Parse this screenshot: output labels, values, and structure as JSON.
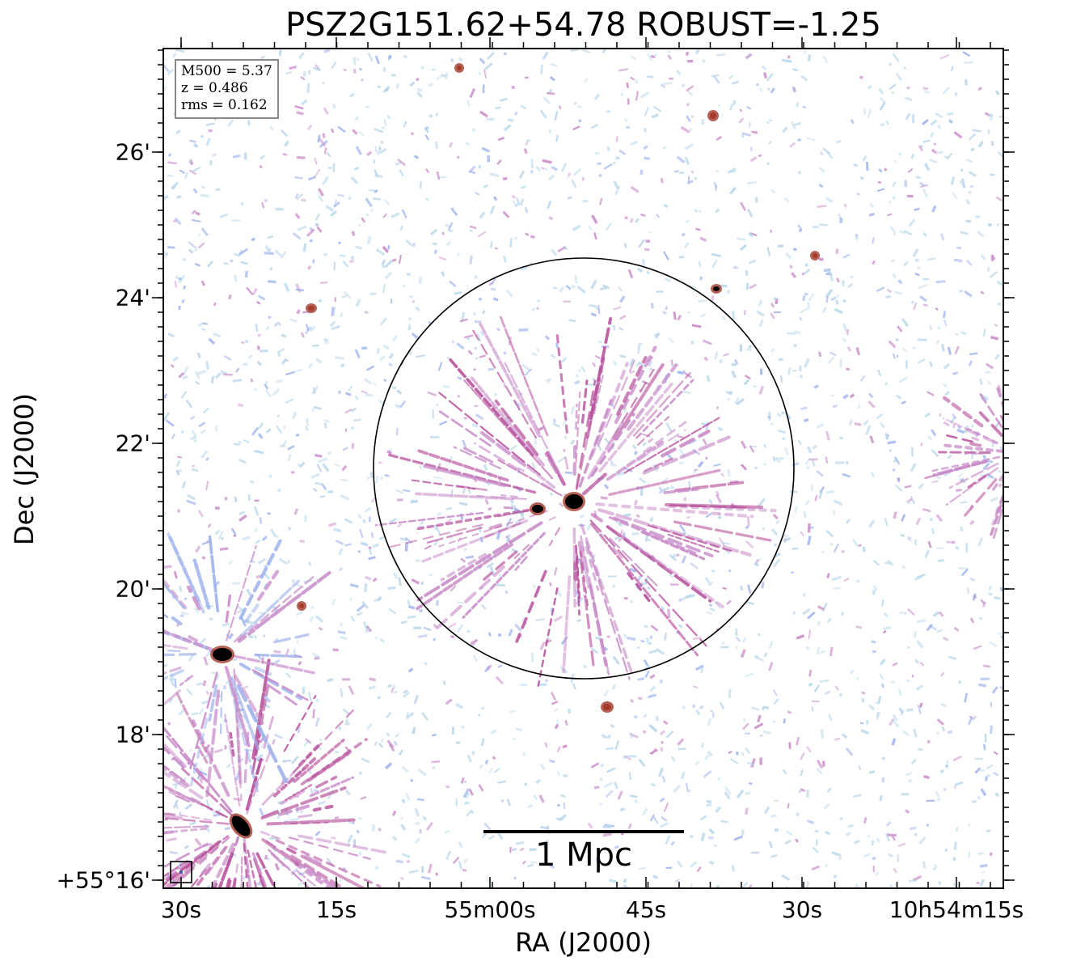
{
  "title": "PSZ2G151.62+54.78 ROBUST=-1.25",
  "axes": {
    "x_label": "RA (J2000)",
    "y_label": "Dec (J2000)",
    "x_ticks": [
      "30s",
      "15s",
      "55m00s",
      "45s",
      "30s",
      "10h54m15s"
    ],
    "y_ticks": [
      "26'",
      "24'",
      "22'",
      "20'",
      "18'",
      "+55°16'"
    ]
  },
  "info_box": {
    "m500": "M500 = 5.37",
    "z": "z = 0.486",
    "rms": "rms = 0.162"
  },
  "scale_bar": {
    "label": "1 Mpc"
  },
  "colors": {
    "noise_light": "#b9d7ea",
    "noise_blue": "#9fb3ec",
    "emission_pink": "#c88bc8",
    "emission_magenta": "#b7509c",
    "source_red": "#a33a2a",
    "source_core": "#000000",
    "circle": "#000000"
  }
}
